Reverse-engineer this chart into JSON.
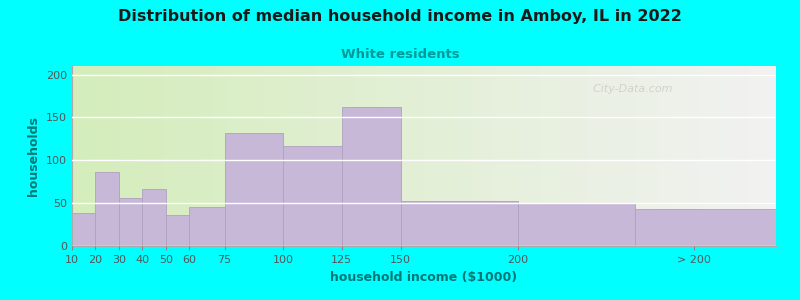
{
  "title": "Distribution of median household income in Amboy, IL in 2022",
  "subtitle": "White residents",
  "xlabel": "household income ($1000)",
  "ylabel": "households",
  "background_outer": "#00FFFF",
  "background_inner_left": "#d4edbb",
  "background_inner_right": "#f2f2f2",
  "bar_color": "#c8b8d8",
  "bar_edge_color": "#b0a0c0",
  "title_color": "#1a1a1a",
  "subtitle_color": "#009999",
  "axis_label_color": "#007777",
  "tick_color": "#555555",
  "watermark": "  City-Data.com",
  "watermark_icon": "@",
  "categories": [
    "10",
    "20",
    "30",
    "40",
    "50",
    "60",
    "75",
    "100",
    "125",
    "150",
    "200",
    "> 200"
  ],
  "values": [
    38,
    86,
    56,
    66,
    36,
    45,
    132,
    117,
    162,
    53,
    50,
    43
  ],
  "bar_lefts": [
    10,
    20,
    30,
    40,
    50,
    60,
    75,
    100,
    125,
    150,
    200,
    250
  ],
  "bar_widths": [
    10,
    10,
    10,
    10,
    10,
    15,
    25,
    25,
    25,
    50,
    50,
    60
  ],
  "xlim": [
    10,
    310
  ],
  "ylim": [
    0,
    210
  ],
  "yticks": [
    0,
    50,
    100,
    150,
    200
  ],
  "xtick_positions": [
    10,
    20,
    30,
    40,
    50,
    60,
    75,
    100,
    125,
    150,
    200,
    275
  ],
  "xtick_labels": [
    "10",
    "20",
    "30",
    "40",
    "50",
    "60",
    "75",
    "100",
    "125",
    "150",
    "200",
    "> 200"
  ],
  "figsize": [
    8.0,
    3.0
  ],
  "dpi": 100
}
